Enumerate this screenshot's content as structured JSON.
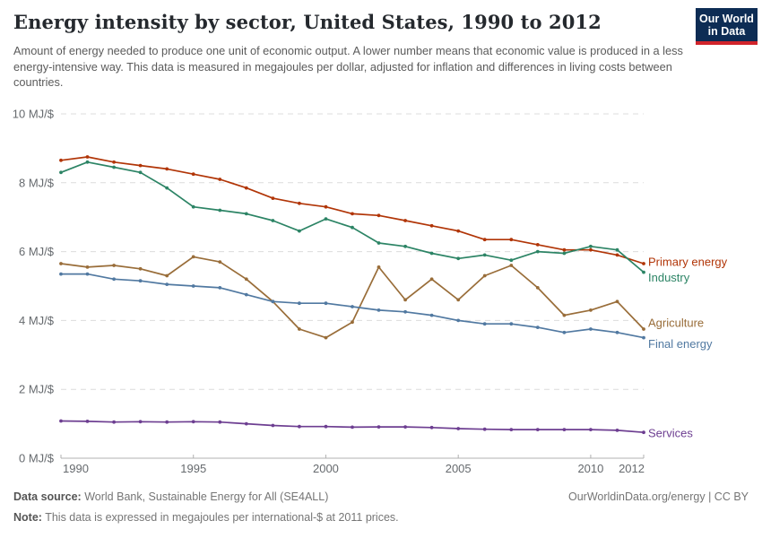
{
  "header": {
    "title": "Energy intensity by sector, United States, 1990 to 2012",
    "subtitle": "Amount of energy needed to produce one unit of economic output. A lower number means that economic value is produced in a less energy-intensive way. This data is measured in megajoules per dollar, adjusted for inflation and differences in living costs between countries."
  },
  "logo": {
    "line1": "Our World",
    "line2": "in Data",
    "bg_color": "#0d2c54",
    "strip_color": "#d1242b"
  },
  "chart_data": {
    "type": "line",
    "x": [
      1990,
      1991,
      1992,
      1993,
      1994,
      1995,
      1996,
      1997,
      1998,
      1999,
      2000,
      2001,
      2002,
      2003,
      2004,
      2005,
      2006,
      2007,
      2008,
      2009,
      2010,
      2011,
      2012
    ],
    "series": [
      {
        "name": "Primary energy",
        "color": "#b13507",
        "label_dy": -2,
        "values": [
          8.65,
          8.75,
          8.6,
          8.5,
          8.4,
          8.25,
          8.1,
          7.85,
          7.55,
          7.4,
          7.3,
          7.1,
          7.05,
          6.9,
          6.75,
          6.6,
          6.35,
          6.35,
          6.2,
          6.05,
          6.05,
          5.9,
          5.65
        ]
      },
      {
        "name": "Industry",
        "color": "#2c8465",
        "label_dy": 6,
        "values": [
          8.3,
          8.6,
          8.45,
          8.3,
          7.85,
          7.3,
          7.2,
          7.1,
          6.9,
          6.6,
          6.95,
          6.7,
          6.25,
          6.15,
          5.95,
          5.8,
          5.9,
          5.75,
          6.0,
          5.95,
          6.15,
          6.05,
          5.4
        ]
      },
      {
        "name": "Agriculture",
        "color": "#996d39",
        "label_dy": -7,
        "values": [
          5.65,
          5.55,
          5.6,
          5.5,
          5.3,
          5.85,
          5.7,
          5.2,
          4.55,
          3.75,
          3.5,
          3.95,
          5.55,
          4.6,
          5.2,
          4.6,
          5.3,
          5.6,
          4.95,
          4.15,
          4.3,
          4.55,
          3.75
        ]
      },
      {
        "name": "Final energy",
        "color": "#5179a1",
        "label_dy": 7,
        "values": [
          5.35,
          5.35,
          5.2,
          5.15,
          5.05,
          5.0,
          4.95,
          4.75,
          4.55,
          4.5,
          4.5,
          4.4,
          4.3,
          4.25,
          4.15,
          4.0,
          3.9,
          3.9,
          3.8,
          3.65,
          3.75,
          3.65,
          3.5
        ]
      },
      {
        "name": "Services",
        "color": "#6d3e91",
        "label_dy": 1,
        "values": [
          1.08,
          1.07,
          1.05,
          1.06,
          1.05,
          1.06,
          1.05,
          1.0,
          0.95,
          0.92,
          0.92,
          0.9,
          0.91,
          0.91,
          0.89,
          0.86,
          0.84,
          0.83,
          0.83,
          0.83,
          0.83,
          0.81,
          0.75
        ]
      }
    ],
    "ylim": [
      0,
      10
    ],
    "yticks": [
      {
        "value": 0,
        "label": "0 MJ/$"
      },
      {
        "value": 2,
        "label": "2 MJ/$"
      },
      {
        "value": 4,
        "label": "4 MJ/$"
      },
      {
        "value": 6,
        "label": "6 MJ/$"
      },
      {
        "value": 8,
        "label": "8 MJ/$"
      },
      {
        "value": 10,
        "label": "10 MJ/$"
      }
    ],
    "xticks": [
      {
        "value": 1990,
        "label": "1990",
        "align": "start"
      },
      {
        "value": 1995,
        "label": "1995",
        "align": "middle"
      },
      {
        "value": 2000,
        "label": "2000",
        "align": "middle"
      },
      {
        "value": 2005,
        "label": "2005",
        "align": "middle"
      },
      {
        "value": 2010,
        "label": "2010",
        "align": "middle"
      },
      {
        "value": 2012,
        "label": "2012",
        "align": "end"
      }
    ],
    "grid": "horizontal-dashed",
    "legend_position": "right-of-line-ends",
    "title": "Energy intensity by sector, United States, 1990 to 2012",
    "xlabel": "",
    "ylabel": "MJ/$"
  },
  "footer": {
    "source_label": "Data source:",
    "source_text": "World Bank, Sustainable Energy for All (SE4ALL)",
    "note_label": "Note:",
    "note_text": "This data is expressed in megajoules per international-$ at 2011 prices.",
    "link": "OurWorldinData.org/energy | CC BY"
  }
}
